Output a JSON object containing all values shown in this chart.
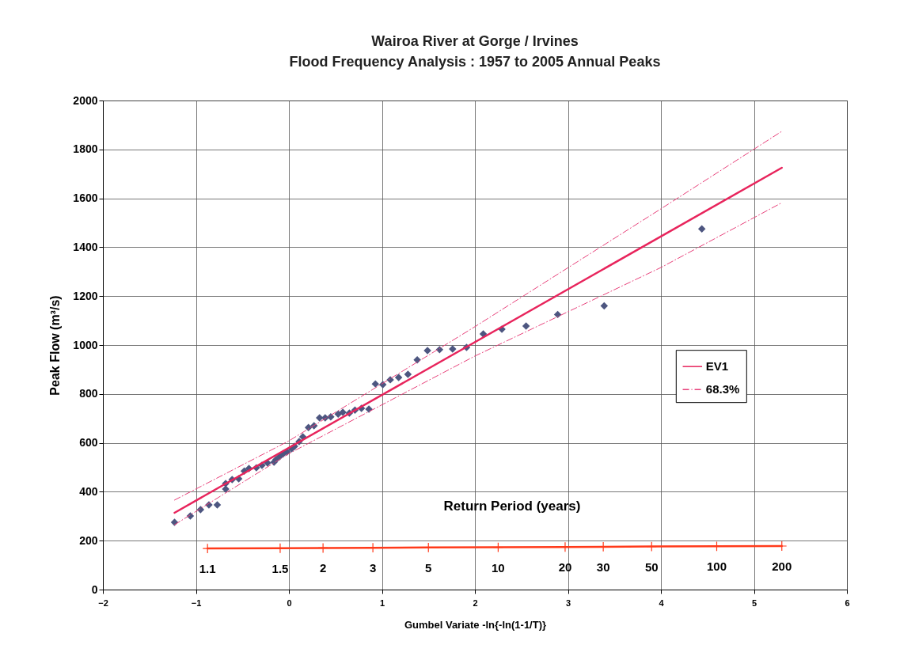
{
  "chart_data": {
    "type": "scatter",
    "title": "Wairoa River at Gorge / Irvines",
    "subtitle": "Flood Frequency Analysis : 1957 to 2005 Annual Peaks",
    "xlabel": "Gumbel Variate -ln{-ln(1-1/T)}",
    "ylabel": "Peak Flow (m³/s)",
    "xlim": [
      -2,
      6
    ],
    "xticks": [
      -2,
      -1,
      0,
      1,
      2,
      3,
      4,
      5,
      6
    ],
    "ylim": [
      0,
      2000
    ],
    "yticks": [
      0,
      200,
      400,
      600,
      800,
      1000,
      1200,
      1400,
      1600,
      1800,
      2000
    ],
    "grid": true,
    "legend": "right",
    "series": [
      {
        "marker": "diamond",
        "color": "#4d5680",
        "x": [
          -1.23,
          -1.06,
          -0.95,
          -0.86,
          -0.77,
          -0.68,
          -0.68,
          -0.61,
          -0.54,
          -0.48,
          -0.43,
          -0.35,
          -0.29,
          -0.23,
          -0.16,
          -0.14,
          -0.1,
          -0.06,
          -0.02,
          0.03,
          0.06,
          0.11,
          0.15,
          0.21,
          0.27,
          0.33,
          0.39,
          0.45,
          0.53,
          0.58,
          0.65,
          0.71,
          0.78,
          0.86,
          0.93,
          1.01,
          1.09,
          1.18,
          1.28,
          1.38,
          1.49,
          1.62,
          1.76,
          1.91,
          2.09,
          2.29,
          2.55,
          2.89,
          3.39,
          4.44
        ],
        "values": [
          275,
          301,
          327,
          346,
          346,
          411,
          434,
          450,
          453,
          485,
          495,
          498,
          508,
          518,
          521,
          531,
          544,
          556,
          563,
          576,
          586,
          605,
          625,
          663,
          670,
          702,
          702,
          706,
          718,
          725,
          722,
          734,
          741,
          738,
          841,
          838,
          858,
          867,
          880,
          939,
          977,
          981,
          984,
          990,
          1045,
          1065,
          1078,
          1125,
          1160,
          1475
        ]
      },
      {
        "type": "line",
        "name": "EV1",
        "line_style": "solid",
        "color": "#e8245c",
        "x": [
          -1.23,
          5.3
        ],
        "values": [
          314,
          1725
        ]
      },
      {
        "type": "line",
        "name": "68.3%",
        "line_style": "dashed",
        "color": "#e8407a",
        "x": [
          -1.23,
          0,
          2,
          4,
          5.3
        ],
        "values": [
          366,
          608,
          1075,
          1557,
          1874
        ]
      },
      {
        "type": "line",
        "line_style": "dashed",
        "color": "#e8407a",
        "x": [
          -1.23,
          0,
          2,
          4,
          5.3
        ],
        "values": [
          265,
          556,
          955,
          1317,
          1582
        ]
      },
      {
        "type": "line",
        "line_style": "solid",
        "marker": "cross",
        "color": "#ff3a1a",
        "x": [
          -0.875,
          -0.094,
          0.367,
          0.903,
          1.5,
          2.25,
          2.97,
          3.38,
          3.9,
          4.6,
          5.3
        ],
        "values": [
          168,
          169,
          170,
          171,
          172,
          173,
          174,
          175,
          176,
          177,
          178
        ]
      }
    ],
    "annotations": [
      "Return Period  (years)",
      {
        "text": "1.1",
        "x": -0.875,
        "y": 168
      },
      {
        "text": "1.5",
        "x": -0.094,
        "y": 169
      },
      {
        "text": "2",
        "x": 0.367,
        "y": 170
      },
      {
        "text": "3",
        "x": 0.903,
        "y": 171
      },
      {
        "text": "5",
        "x": 1.5,
        "y": 172
      },
      {
        "text": "10",
        "x": 2.25,
        "y": 173
      },
      {
        "text": "20",
        "x": 2.97,
        "y": 174
      },
      {
        "text": "30",
        "x": 3.38,
        "y": 175
      },
      {
        "text": "50",
        "x": 3.9,
        "y": 176
      },
      {
        "text": "100",
        "x": 4.6,
        "y": 177
      },
      {
        "text": "200",
        "x": 5.3,
        "y": 178
      }
    ]
  }
}
